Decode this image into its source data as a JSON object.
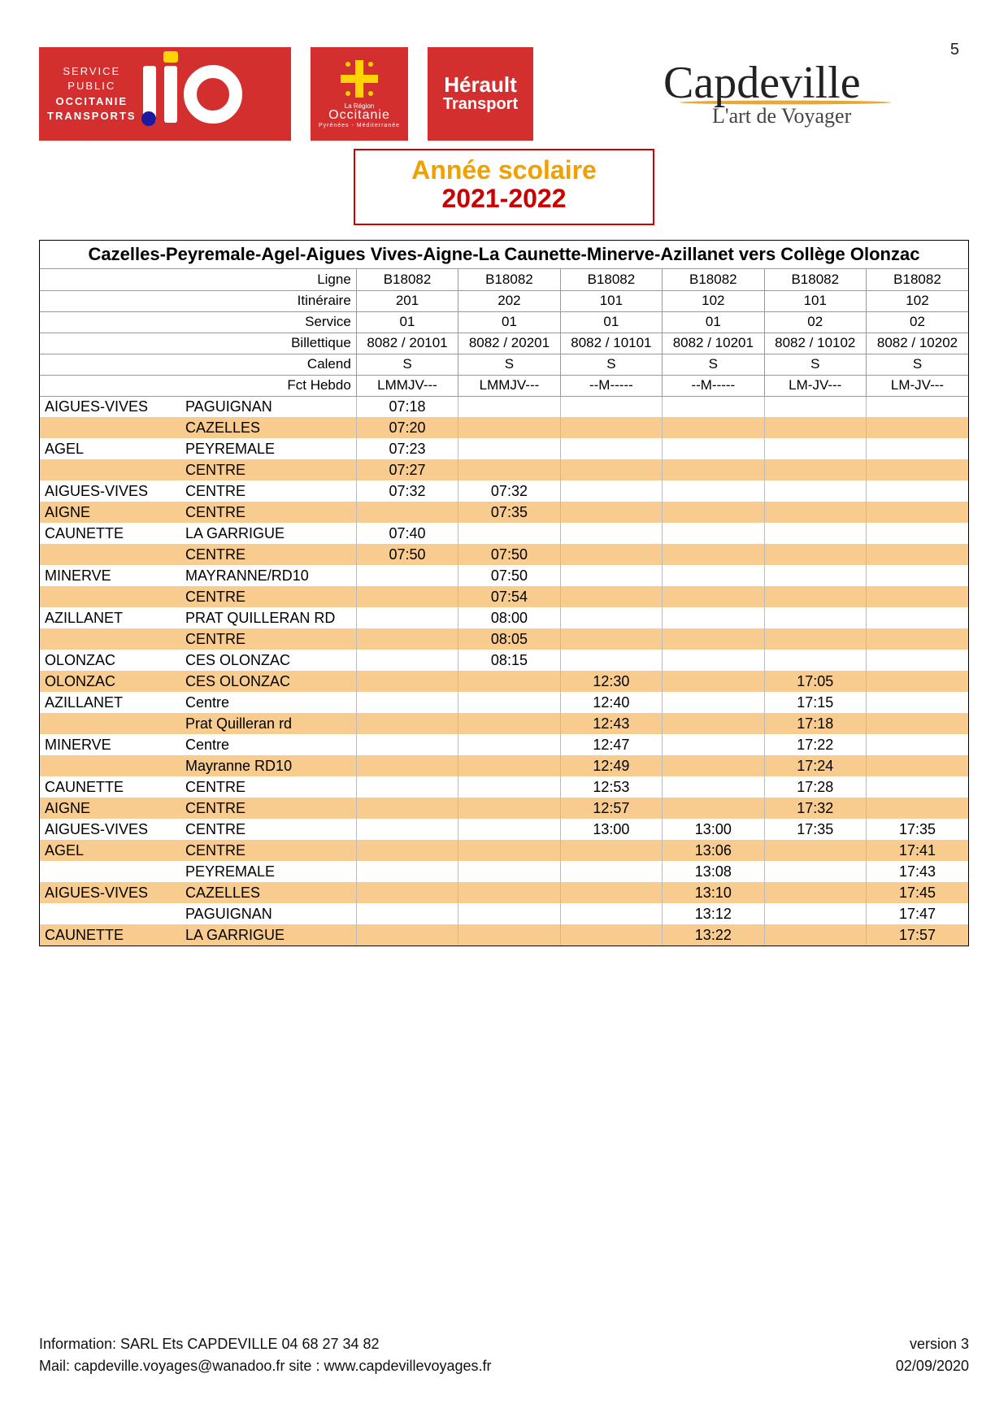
{
  "page_number": "5",
  "header": {
    "lio_lines": [
      "SERVICE",
      "PUBLIC",
      "OCCITANIE",
      "TRANSPORTS"
    ],
    "occitanie_top": "La Région",
    "occitanie_label": "Occitanie",
    "occitanie_sub": "Pyrénées - Méditerranée",
    "herault_line1": "Hérault",
    "herault_line2": "Transport",
    "capdeville_main": "Capdeville",
    "capdeville_sub": "L'art de Voyager"
  },
  "year_box": {
    "line1": "Année scolaire",
    "line2": "2021-2022"
  },
  "route_title": "Cazelles-Peyremale-Agel-Aigues Vives-Aigne-La Caunette-Minerve-Azillanet vers Collège Olonzac",
  "columns": [
    "c1",
    "c2",
    "c3",
    "c4",
    "c5",
    "c6"
  ],
  "header_rows": [
    {
      "label": "Ligne",
      "values": [
        "B18082",
        "B18082",
        "B18082",
        "B18082",
        "B18082",
        "B18082"
      ]
    },
    {
      "label": "Itinéraire",
      "values": [
        "201",
        "202",
        "101",
        "102",
        "101",
        "102"
      ]
    },
    {
      "label": "Service",
      "values": [
        "01",
        "01",
        "01",
        "01",
        "02",
        "02"
      ]
    },
    {
      "label": "Billettique",
      "values": [
        "8082 / 20101",
        "8082 / 20201",
        "8082 / 10101",
        "8082 / 10201",
        "8082 / 10102",
        "8082 / 10202"
      ]
    },
    {
      "label": "Calend",
      "values": [
        "S",
        "S",
        "S",
        "S",
        "S",
        "S"
      ]
    },
    {
      "label": "Fct Hebdo",
      "values": [
        "LMMJV---",
        "LMMJV---",
        "--M-----",
        "--M-----",
        "LM-JV---",
        "LM-JV---"
      ]
    }
  ],
  "data_rows": [
    {
      "stripe": false,
      "city": "AIGUES-VIVES",
      "stop": "PAGUIGNAN",
      "times": [
        "07:18",
        "",
        "",
        "",
        "",
        ""
      ]
    },
    {
      "stripe": true,
      "city": "",
      "stop": "CAZELLES",
      "times": [
        "07:20",
        "",
        "",
        "",
        "",
        ""
      ]
    },
    {
      "stripe": false,
      "city": "AGEL",
      "stop": "PEYREMALE",
      "times": [
        "07:23",
        "",
        "",
        "",
        "",
        ""
      ]
    },
    {
      "stripe": true,
      "city": "",
      "stop": "CENTRE",
      "times": [
        "07:27",
        "",
        "",
        "",
        "",
        ""
      ]
    },
    {
      "stripe": false,
      "city": "AIGUES-VIVES",
      "stop": "CENTRE",
      "times": [
        "07:32",
        "07:32",
        "",
        "",
        "",
        ""
      ]
    },
    {
      "stripe": true,
      "city": "AIGNE",
      "stop": "CENTRE",
      "times": [
        "",
        "07:35",
        "",
        "",
        "",
        ""
      ]
    },
    {
      "stripe": false,
      "city": "CAUNETTE",
      "stop": "LA GARRIGUE",
      "times": [
        "07:40",
        "",
        "",
        "",
        "",
        ""
      ]
    },
    {
      "stripe": true,
      "city": "",
      "stop": "CENTRE",
      "times": [
        "07:50",
        "07:50",
        "",
        "",
        "",
        ""
      ]
    },
    {
      "stripe": false,
      "city": "MINERVE",
      "stop": "MAYRANNE/RD10",
      "times": [
        "",
        "07:50",
        "",
        "",
        "",
        ""
      ]
    },
    {
      "stripe": true,
      "city": "",
      "stop": "CENTRE",
      "times": [
        "",
        "07:54",
        "",
        "",
        "",
        ""
      ]
    },
    {
      "stripe": false,
      "city": "AZILLANET",
      "stop": "PRAT QUILLERAN RD",
      "times": [
        "",
        "08:00",
        "",
        "",
        "",
        ""
      ]
    },
    {
      "stripe": true,
      "city": "",
      "stop": "CENTRE",
      "times": [
        "",
        "08:05",
        "",
        "",
        "",
        ""
      ]
    },
    {
      "stripe": false,
      "city": "OLONZAC",
      "stop": "CES OLONZAC",
      "times": [
        "",
        "08:15",
        "",
        "",
        "",
        ""
      ]
    },
    {
      "stripe": true,
      "city": "OLONZAC",
      "stop": "CES OLONZAC",
      "times": [
        "",
        "",
        "12:30",
        "",
        "17:05",
        ""
      ]
    },
    {
      "stripe": false,
      "city": "AZILLANET",
      "stop": "Centre",
      "times": [
        "",
        "",
        "12:40",
        "",
        "17:15",
        ""
      ]
    },
    {
      "stripe": true,
      "city": "",
      "stop": "Prat Quilleran rd",
      "times": [
        "",
        "",
        "12:43",
        "",
        "17:18",
        ""
      ]
    },
    {
      "stripe": false,
      "city": "MINERVE",
      "stop": "Centre",
      "times": [
        "",
        "",
        "12:47",
        "",
        "17:22",
        ""
      ]
    },
    {
      "stripe": true,
      "city": "",
      "stop": "Mayranne RD10",
      "times": [
        "",
        "",
        "12:49",
        "",
        "17:24",
        ""
      ]
    },
    {
      "stripe": false,
      "city": "CAUNETTE",
      "stop": "CENTRE",
      "times": [
        "",
        "",
        "12:53",
        "",
        "17:28",
        ""
      ]
    },
    {
      "stripe": true,
      "city": "AIGNE",
      "stop": "CENTRE",
      "times": [
        "",
        "",
        "12:57",
        "",
        "17:32",
        ""
      ]
    },
    {
      "stripe": false,
      "city": "AIGUES-VIVES",
      "stop": "CENTRE",
      "times": [
        "",
        "",
        "13:00",
        "13:00",
        "17:35",
        "17:35"
      ]
    },
    {
      "stripe": true,
      "city": "AGEL",
      "stop": "CENTRE",
      "times": [
        "",
        "",
        "",
        "13:06",
        "",
        "17:41"
      ]
    },
    {
      "stripe": false,
      "city": "",
      "stop": "PEYREMALE",
      "times": [
        "",
        "",
        "",
        "13:08",
        "",
        "17:43"
      ]
    },
    {
      "stripe": true,
      "city": "AIGUES-VIVES",
      "stop": "CAZELLES",
      "times": [
        "",
        "",
        "",
        "13:10",
        "",
        "17:45"
      ]
    },
    {
      "stripe": false,
      "city": "",
      "stop": "PAGUIGNAN",
      "times": [
        "",
        "",
        "",
        "13:12",
        "",
        "17:47"
      ]
    },
    {
      "stripe": true,
      "city": "CAUNETTE",
      "stop": "LA GARRIGUE",
      "times": [
        "",
        "",
        "",
        "13:22",
        "",
        "17:57"
      ]
    }
  ],
  "footer": {
    "info1": "Information: SARL Ets CAPDEVILLE 04 68 27 34 82",
    "info2": "Mail: capdeville.voyages@wanadoo.fr  site : www.capdevillevoyages.fr",
    "version": "version 3",
    "date": "02/09/2020"
  },
  "colors": {
    "red": "#d32f2f",
    "stripe": "#f8cc8e",
    "orange_text": "#f0a000",
    "red_text": "#c00"
  }
}
